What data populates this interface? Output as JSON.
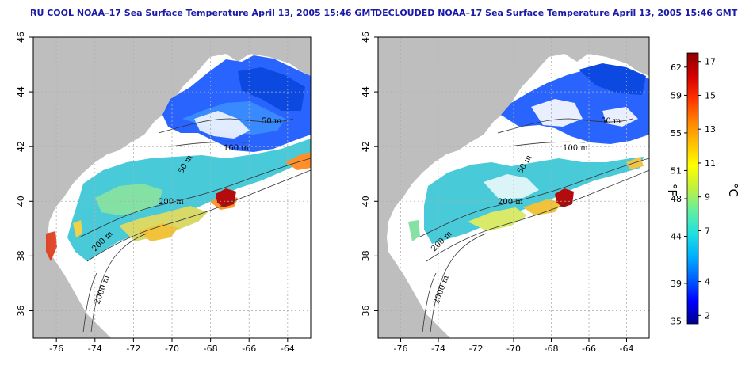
{
  "maps": [
    {
      "title": "RU COOL NOAA–17 Sea Surface Temperature April 13, 2005 15:46 GMT",
      "contour_labels": [
        "200 m",
        "2000 m",
        "200 m",
        "50 m",
        "100 m",
        "50 m"
      ]
    },
    {
      "title": "DECLOUDED NOAA–17 Sea Surface Temperature April 13, 2005 15:46 GMT",
      "contour_labels": [
        "200 m",
        "2000 m",
        "200 m",
        "50 m",
        "100 m",
        "50 m"
      ]
    }
  ],
  "axes": {
    "x_ticks": [
      "-76",
      "-74",
      "-72",
      "-70",
      "-68",
      "-66",
      "-64"
    ],
    "y_ticks": [
      "46",
      "44",
      "42",
      "40",
      "38",
      "36"
    ],
    "x_values": [
      -76,
      -74,
      -72,
      -70,
      -68,
      -66,
      -64
    ],
    "y_values": [
      46,
      44,
      42,
      40,
      38,
      36
    ],
    "xlim": [
      -77.2,
      -62.8
    ],
    "ylim": [
      35,
      46
    ]
  },
  "colorbar": {
    "fahrenheit_label": "°F",
    "celsius_label": "°C",
    "fahrenheit_ticks": [
      "62",
      "59",
      "55",
      "51",
      "48",
      "44",
      "39",
      "35"
    ],
    "celsius_ticks": [
      "17",
      "15",
      "13",
      "11",
      "9",
      "7",
      "4",
      "2"
    ],
    "fahrenheit_values": [
      62,
      59,
      55,
      51,
      48,
      44,
      39,
      35
    ],
    "celsius_values": [
      17,
      15,
      13,
      11,
      9,
      7,
      4,
      2
    ],
    "range_c": [
      1.5,
      17.5
    ],
    "colors": [
      "#00008b",
      "#0000ff",
      "#0060ff",
      "#00b0ff",
      "#20e0e0",
      "#60f0a0",
      "#c0f040",
      "#ffff00",
      "#ffc000",
      "#ff8000",
      "#ff3000",
      "#d00000",
      "#8b0000"
    ]
  },
  "colors": {
    "land": "#bebebe",
    "title": "#1a1aa8",
    "grid": "#b0b0b0"
  }
}
